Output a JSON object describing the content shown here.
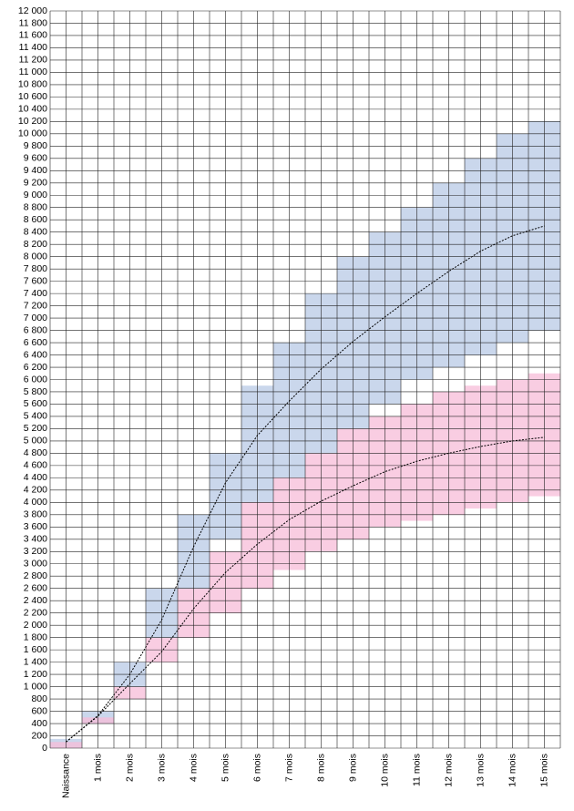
{
  "chart_data": {
    "type": "range-line",
    "categories": [
      "Naissance",
      "1 mois",
      "2 mois",
      "3 mois",
      "4 mois",
      "5 mois",
      "6 mois",
      "7 mois",
      "8 mois",
      "9 mois",
      "10 mois",
      "11 mois",
      "12 mois",
      "13 mois",
      "14 mois",
      "15 mois"
    ],
    "ranges": [
      {
        "color": "#b8c9e6",
        "low": [
          0,
          400,
          1000,
          1800,
          2600,
          3400,
          4000,
          4400,
          4800,
          5200,
          5600,
          6000,
          6200,
          6400,
          6600,
          6800
        ],
        "high": [
          150,
          600,
          1400,
          2600,
          3800,
          4800,
          5900,
          6600,
          7400,
          8000,
          8400,
          8800,
          9200,
          9600,
          10000,
          10200
        ]
      },
      {
        "color": "#f7bcd8",
        "low": [
          0,
          400,
          800,
          1400,
          1800,
          2200,
          2600,
          2900,
          3200,
          3400,
          3600,
          3700,
          3800,
          3900,
          4000,
          4100
        ],
        "high": [
          100,
          500,
          1000,
          1800,
          2600,
          3200,
          4000,
          4400,
          4800,
          5200,
          5400,
          5600,
          5800,
          5900,
          6000,
          6100
        ]
      }
    ],
    "series": [
      {
        "color": "#000000",
        "values": [
          100,
          530,
          1200,
          2090,
          3280,
          4320,
          5090,
          5650,
          6170,
          6620,
          7020,
          7400,
          7760,
          8090,
          8340,
          8500
        ]
      },
      {
        "color": "#000000",
        "values": [
          100,
          520,
          1050,
          1570,
          2270,
          2860,
          3320,
          3720,
          4020,
          4270,
          4500,
          4670,
          4800,
          4910,
          5000,
          5060
        ]
      }
    ],
    "ylim": [
      0,
      12000
    ],
    "yticks": [
      0,
      200,
      400,
      600,
      800,
      {
        "value": 1000,
        "label": "1 000"
      },
      {
        "value": 1200,
        "label": "1 200"
      },
      {
        "value": 1400,
        "label": "1 400"
      },
      {
        "value": 1600,
        "label": "1 600"
      },
      {
        "value": 1800,
        "label": "1 800"
      },
      {
        "value": 2000,
        "label": "2 000"
      },
      {
        "value": 2200,
        "label": "2 200"
      },
      {
        "value": 2400,
        "label": "2 400"
      },
      {
        "value": 2600,
        "label": "2 600"
      },
      {
        "value": 2800,
        "label": "2 800"
      },
      {
        "value": 3000,
        "label": "3 000"
      },
      {
        "value": 3200,
        "label": "3 200"
      },
      {
        "value": 3400,
        "label": "3 400"
      },
      {
        "value": 3600,
        "label": "3 600"
      },
      {
        "value": 3800,
        "label": "3 800"
      },
      {
        "value": 4000,
        "label": "4 000"
      },
      {
        "value": 4200,
        "label": "4 200"
      },
      {
        "value": 4400,
        "label": "4 400"
      },
      {
        "value": 4600,
        "label": "4 600"
      },
      {
        "value": 4800,
        "label": "4 800"
      },
      {
        "value": 5000,
        "label": "5 000"
      },
      {
        "value": 5200,
        "label": "5 200"
      },
      {
        "value": 5400,
        "label": "5 400"
      },
      {
        "value": 5600,
        "label": "5 600"
      },
      {
        "value": 5800,
        "label": "5 800"
      },
      {
        "value": 6000,
        "label": "6 000"
      },
      {
        "value": 6200,
        "label": "6 200"
      },
      {
        "value": 6400,
        "label": "6 400"
      },
      {
        "value": 6600,
        "label": "6 600"
      },
      {
        "value": 6800,
        "label": "6 800"
      },
      {
        "value": 7000,
        "label": "7 000"
      },
      {
        "value": 7200,
        "label": "7 200"
      },
      {
        "value": 7400,
        "label": "7 400"
      },
      {
        "value": 7600,
        "label": "7 600"
      },
      {
        "value": 7800,
        "label": "7 800"
      },
      {
        "value": 8000,
        "label": "8 000"
      },
      {
        "value": 8200,
        "label": "8 200"
      },
      {
        "value": 8400,
        "label": "8 400"
      },
      {
        "value": 8600,
        "label": "8 600"
      },
      {
        "value": 8800,
        "label": "8 800"
      },
      {
        "value": 9000,
        "label": "9 000"
      },
      {
        "value": 9200,
        "label": "9 200"
      },
      {
        "value": 9400,
        "label": "9 400"
      },
      {
        "value": 9600,
        "label": "9 600"
      },
      {
        "value": 9800,
        "label": "9 800"
      },
      {
        "value": 10000,
        "label": "10 000"
      },
      {
        "value": 10200,
        "label": "10 200"
      },
      {
        "value": 10400,
        "label": "10 400"
      },
      {
        "value": 10600,
        "label": "10 600"
      },
      {
        "value": 10800,
        "label": "10 800"
      },
      {
        "value": 11000,
        "label": "11 000"
      },
      {
        "value": 11200,
        "label": "11 200"
      },
      {
        "value": 11400,
        "label": "11 400"
      },
      {
        "value": 11600,
        "label": "11 600"
      },
      {
        "value": 11800,
        "label": "11 800"
      },
      {
        "value": 12000,
        "label": "12 000"
      }
    ],
    "grid": true
  }
}
